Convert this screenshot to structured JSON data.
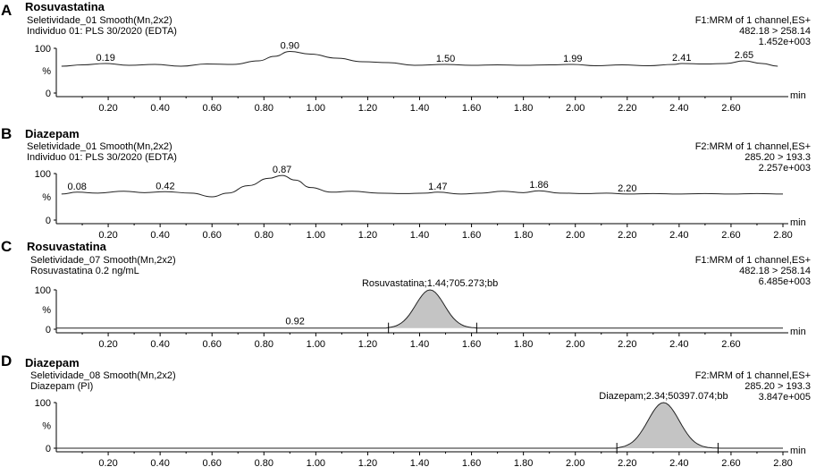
{
  "panels": [
    {
      "letter": "A",
      "title": "Rosuvastatina",
      "line1": "Seletividade_01 Smooth(Mn,2x2)",
      "line2": "Individuo 01: PLS 30/2020 (EDTA)",
      "right1": "F1:MRM of 1 channel,ES+",
      "right2": "482.18 > 258.14",
      "right3": "1.452e+003"
    },
    {
      "letter": "B",
      "title": "Diazepam",
      "line1": "Seletividade_01 Smooth(Mn,2x2)",
      "line2": "Individuo 01: PLS 30/2020 (EDTA)",
      "right1": "F2:MRM of 1 channel,ES+",
      "right2": "285.20 > 193.3",
      "right3": "2.257e+003"
    },
    {
      "letter": "C",
      "title": "Rosuvastatina",
      "line1": "Seletividade_07 Smooth(Mn,2x2)",
      "line2": "Rosuvastatina 0.2 ng/mL",
      "right1": "F1:MRM of 1 channel,ES+",
      "right2": "482.18 > 258.14",
      "right3": "6.485e+003"
    },
    {
      "letter": "D",
      "title": "Diazepam",
      "line1": "Seletividade_08 Smooth(Mn,2x2)",
      "line2": "Diazepam (PI)",
      "right1": "F2:MRM of 1 channel,ES+",
      "right2": "285.20 > 193.3",
      "right3": "3.847e+005"
    }
  ],
  "chart_data": [
    {
      "type": "line",
      "panel": "A",
      "xlim": [
        0.0,
        2.8
      ],
      "ylim": [
        0,
        100
      ],
      "xlabel": "min",
      "ylabel": "%",
      "y_ticks": [
        "100",
        "%",
        "0"
      ],
      "x_ticks": [
        "0.20",
        "0.40",
        "0.60",
        "0.80",
        "1.00",
        "1.20",
        "1.40",
        "1.60",
        "1.80",
        "2.00",
        "2.20",
        "2.40",
        "2.60"
      ],
      "x": [
        0.02,
        0.1,
        0.19,
        0.28,
        0.38,
        0.48,
        0.58,
        0.68,
        0.78,
        0.84,
        0.9,
        0.98,
        1.08,
        1.18,
        1.28,
        1.38,
        1.5,
        1.6,
        1.7,
        1.8,
        1.9,
        1.99,
        2.08,
        2.18,
        2.28,
        2.38,
        2.41,
        2.5,
        2.58,
        2.65,
        2.72,
        2.78
      ],
      "y": [
        60,
        63,
        66,
        62,
        64,
        60,
        65,
        64,
        72,
        82,
        93,
        87,
        78,
        70,
        68,
        62,
        64,
        62,
        63,
        62,
        63,
        64,
        61,
        63,
        61,
        64,
        66,
        65,
        66,
        72,
        66,
        60
      ],
      "peak_labels": [
        {
          "x": 0.19,
          "text": "0.19"
        },
        {
          "x": 0.9,
          "text": "0.90"
        },
        {
          "x": 1.5,
          "text": "1.50"
        },
        {
          "x": 1.99,
          "text": "1.99"
        },
        {
          "x": 2.41,
          "text": "2.41"
        },
        {
          "x": 2.65,
          "text": "2.65"
        }
      ]
    },
    {
      "type": "line",
      "panel": "B",
      "xlim": [
        0.0,
        2.8
      ],
      "ylim": [
        0,
        100
      ],
      "xlabel": "min",
      "ylabel": "%",
      "y_ticks": [
        "100",
        "%",
        "0"
      ],
      "x_ticks": [
        "0.20",
        "0.40",
        "0.60",
        "0.80",
        "1.00",
        "1.20",
        "1.40",
        "1.60",
        "1.80",
        "2.00",
        "2.20",
        "2.40",
        "2.60",
        "2.80"
      ],
      "x": [
        0.02,
        0.08,
        0.16,
        0.26,
        0.34,
        0.42,
        0.52,
        0.6,
        0.66,
        0.74,
        0.82,
        0.87,
        0.92,
        0.98,
        1.06,
        1.14,
        1.24,
        1.34,
        1.42,
        1.47,
        1.56,
        1.64,
        1.72,
        1.8,
        1.86,
        1.94,
        2.04,
        2.12,
        2.2,
        2.3,
        2.4,
        2.5,
        2.6,
        2.7,
        2.8
      ],
      "y": [
        56,
        60,
        58,
        62,
        59,
        61,
        58,
        50,
        58,
        74,
        90,
        96,
        86,
        70,
        60,
        62,
        58,
        57,
        58,
        60,
        56,
        58,
        62,
        59,
        63,
        58,
        57,
        58,
        56,
        57,
        56,
        57,
        56,
        57,
        56
      ],
      "peak_labels": [
        {
          "x": 0.08,
          "text": "0.08"
        },
        {
          "x": 0.42,
          "text": "0.42"
        },
        {
          "x": 0.87,
          "text": "0.87"
        },
        {
          "x": 1.47,
          "text": "1.47"
        },
        {
          "x": 1.86,
          "text": "1.86"
        },
        {
          "x": 2.2,
          "text": "2.20"
        }
      ]
    },
    {
      "type": "area",
      "panel": "C",
      "xlim": [
        0.0,
        2.8
      ],
      "ylim": [
        0,
        100
      ],
      "xlabel": "min",
      "ylabel": "%",
      "y_ticks": [
        "100",
        "%",
        "0"
      ],
      "x_ticks": [
        "0.20",
        "0.40",
        "0.60",
        "0.80",
        "1.00",
        "1.20",
        "1.40",
        "1.60",
        "1.80",
        "2.00",
        "2.20",
        "2.40",
        "2.60"
      ],
      "peak": {
        "center": 1.44,
        "sigma": 0.055,
        "height": 100,
        "start": 1.28,
        "end": 1.62
      },
      "baseline": 3,
      "peak_labels": [
        {
          "x": 0.92,
          "text": "0.92"
        },
        {
          "x": 1.44,
          "text": "Rosuvastatina;1.44;705.273;bb"
        }
      ]
    },
    {
      "type": "area",
      "panel": "D",
      "xlim": [
        0.0,
        2.8
      ],
      "ylim": [
        0,
        100
      ],
      "xlabel": "min",
      "ylabel": "%",
      "y_ticks": [
        "100",
        "%",
        "0"
      ],
      "x_ticks": [
        "0.20",
        "0.40",
        "0.60",
        "0.80",
        "1.00",
        "1.20",
        "1.40",
        "1.60",
        "1.80",
        "2.00",
        "2.20",
        "2.40",
        "2.60",
        "2.80"
      ],
      "peak": {
        "center": 2.34,
        "sigma": 0.06,
        "height": 100,
        "start": 2.16,
        "end": 2.55
      },
      "baseline": 0,
      "peak_labels": [
        {
          "x": 2.34,
          "text": "Diazepam;2.34;50397.074;bb"
        }
      ]
    }
  ]
}
